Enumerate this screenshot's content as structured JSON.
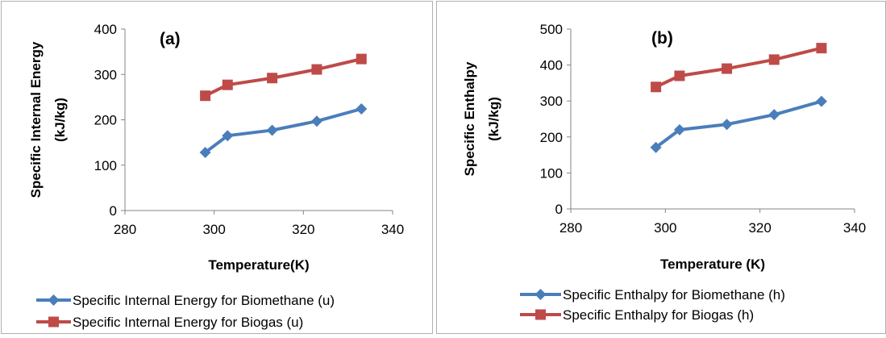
{
  "chart_data": [
    {
      "type": "line",
      "title": "(a)",
      "xlabel": "Temperature(K)",
      "ylabel": [
        "Specific Internal Energy",
        "(kJ/kg)"
      ],
      "xlim": [
        280,
        340
      ],
      "ylim": [
        0,
        400
      ],
      "xticks": [
        280,
        300,
        320,
        340
      ],
      "yticks": [
        0,
        100,
        200,
        300,
        400
      ],
      "grid": false,
      "legend": "bottom",
      "series": [
        {
          "name": "Specific Internal Energy for Biomethane (u)",
          "color": "#4a7ebb",
          "marker": "diamond",
          "x": [
            298,
            303,
            313,
            323,
            333
          ],
          "y": [
            128,
            165,
            177,
            197,
            224
          ]
        },
        {
          "name": "Specific Internal Energy for Biogas (u)",
          "color": "#be4b48",
          "marker": "square",
          "x": [
            298,
            303,
            313,
            323,
            333
          ],
          "y": [
            253,
            277,
            292,
            311,
            334
          ]
        }
      ]
    },
    {
      "type": "line",
      "title": "(b)",
      "xlabel": "Temperature (K)",
      "ylabel": [
        "Specific Enthalpy",
        "(kJ/kg)"
      ],
      "xlim": [
        280,
        340
      ],
      "ylim": [
        0,
        500
      ],
      "xticks": [
        280,
        300,
        320,
        340
      ],
      "yticks": [
        0,
        100,
        200,
        300,
        400,
        500
      ],
      "grid": false,
      "legend": "bottom",
      "series": [
        {
          "name": "Specific Enthalpy for Biomethane (h)",
          "color": "#4a7ebb",
          "marker": "diamond",
          "x": [
            298,
            303,
            313,
            323,
            333
          ],
          "y": [
            171,
            220,
            235,
            262,
            299
          ]
        },
        {
          "name": "Specific Enthalpy for Biogas (h)",
          "color": "#be4b48",
          "marker": "square",
          "x": [
            298,
            303,
            313,
            323,
            333
          ],
          "y": [
            339,
            370,
            390,
            415,
            447
          ]
        }
      ]
    }
  ]
}
